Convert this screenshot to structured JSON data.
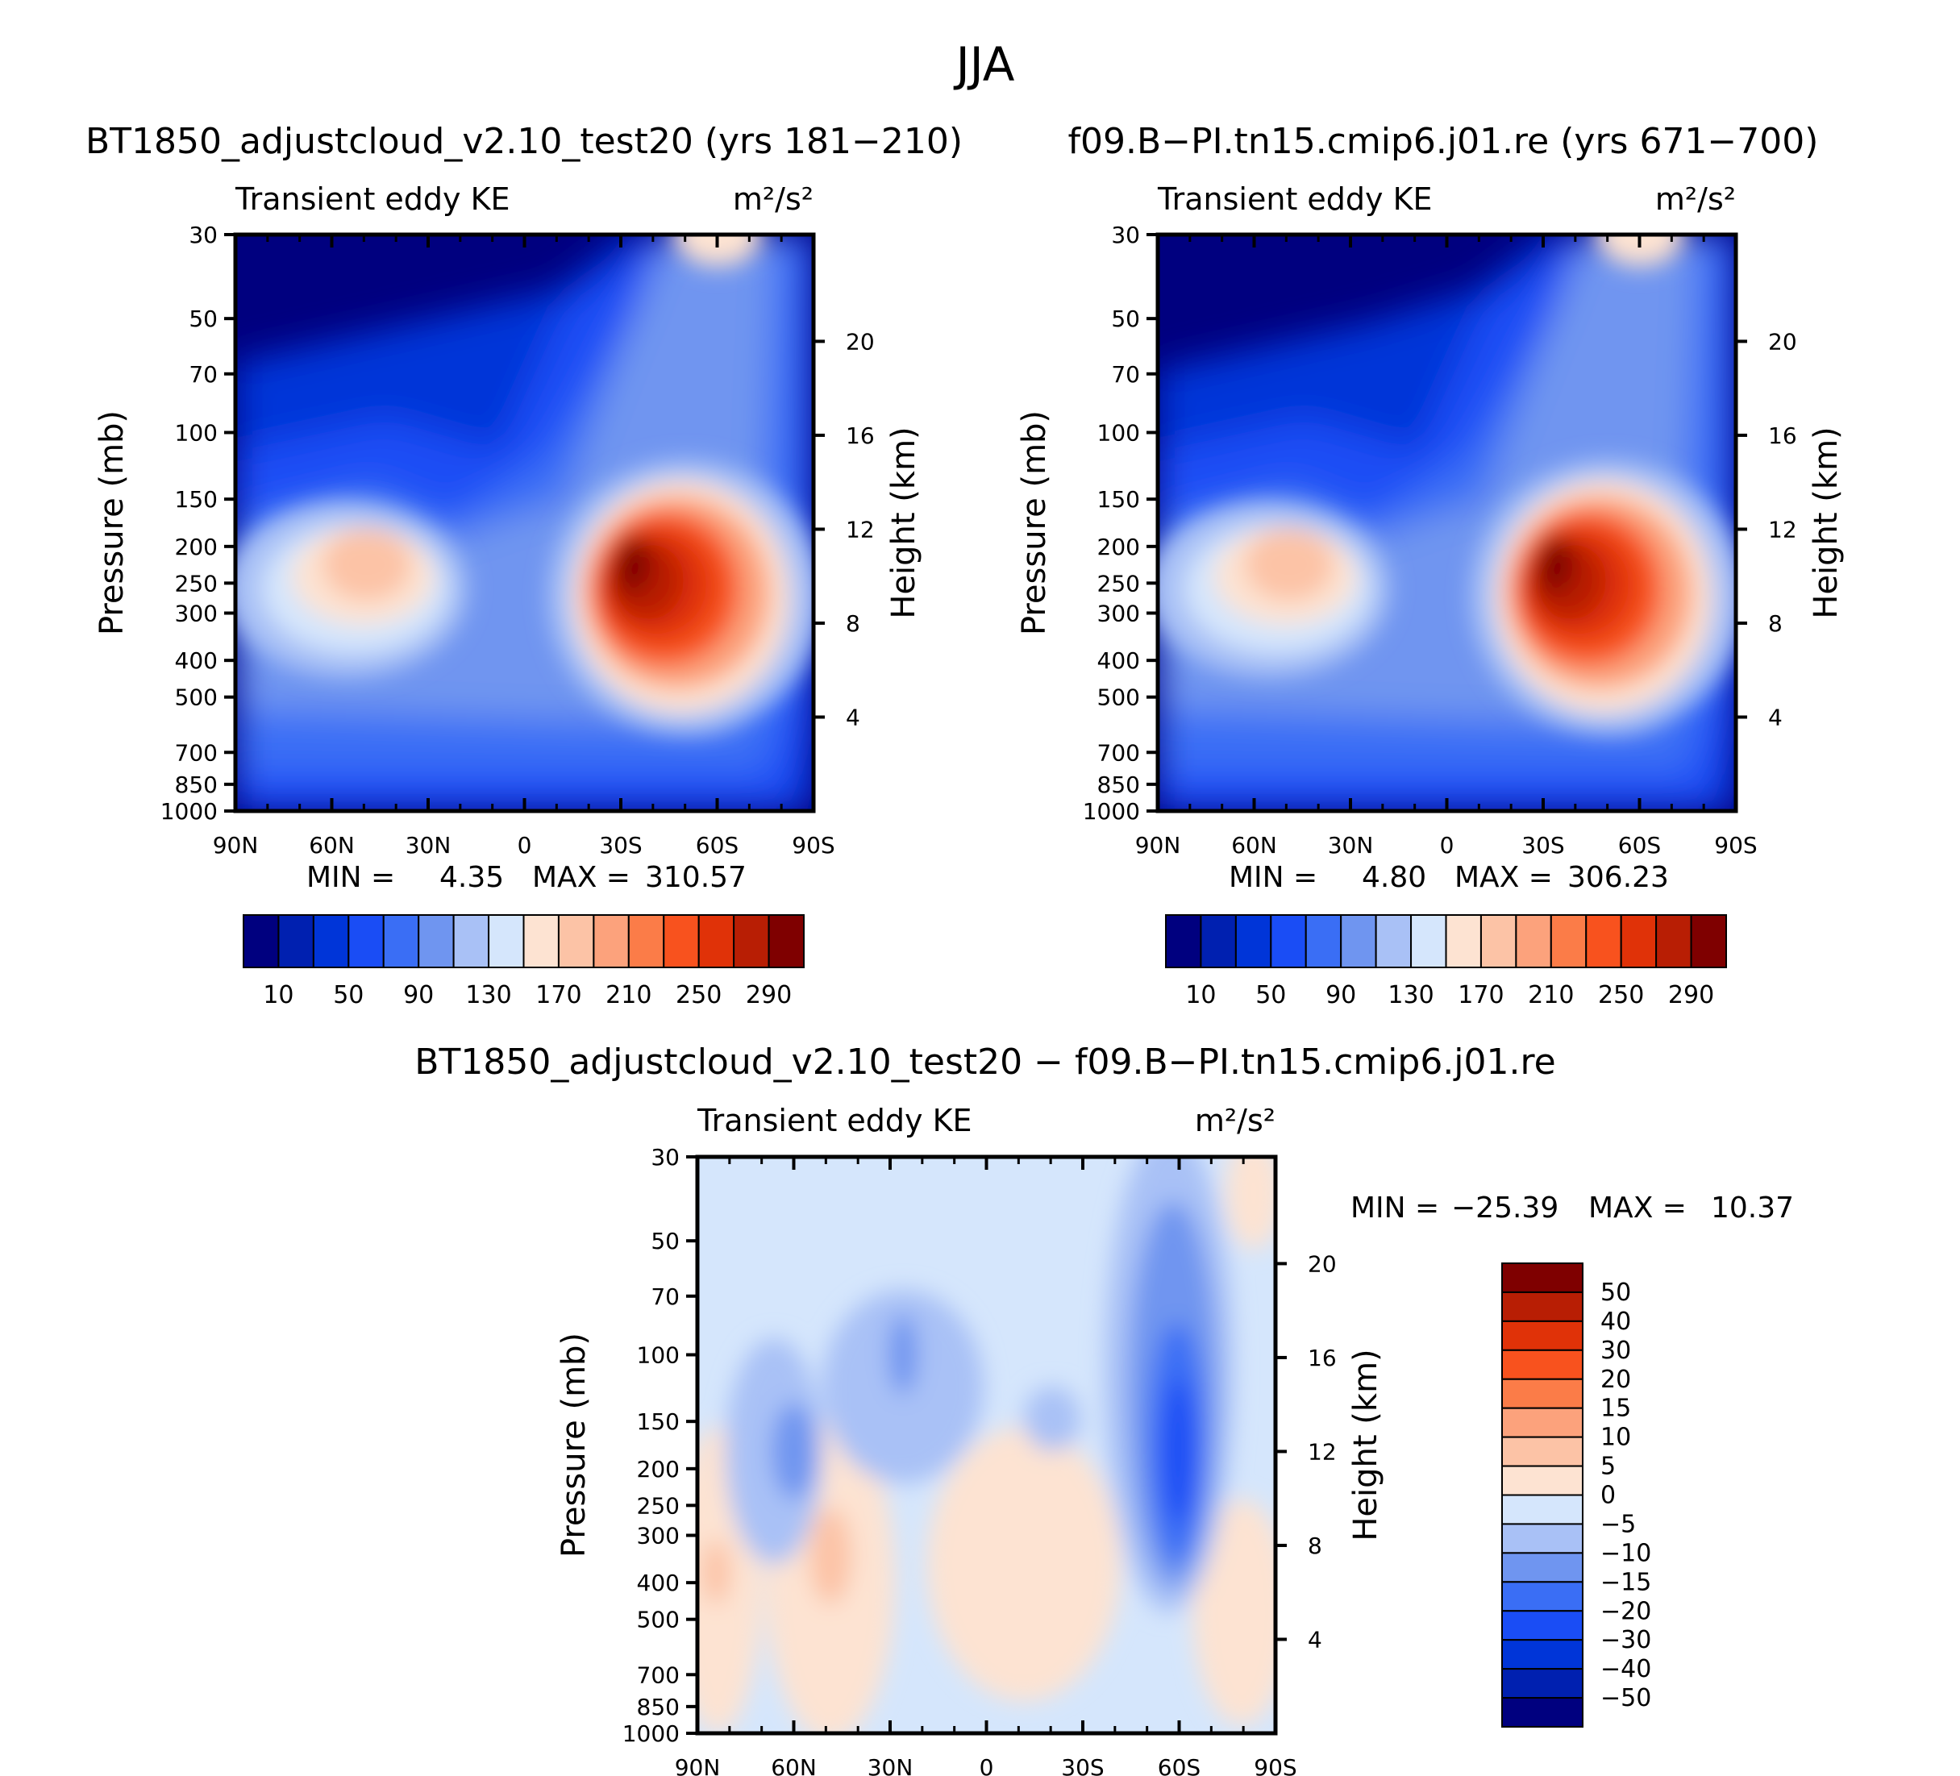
{
  "page_title": "JJA",
  "chart_data": [
    {
      "type": "heatmap",
      "panel": "top-left",
      "title": "BT1850_adjustcloud_v2.10_test20 (yrs 181−210)",
      "variable_label": "Transient eddy KE",
      "units": "m²/s²",
      "ylabel": "Pressure (mb)",
      "y2label": "Height (km)",
      "xticks": [
        "90N",
        "60N",
        "30N",
        "0",
        "30S",
        "60S",
        "90S"
      ],
      "yticks": [
        "30",
        "50",
        "70",
        "100",
        "150",
        "200",
        "250",
        "300",
        "400",
        "500",
        "700",
        "850",
        "1000"
      ],
      "y2ticks": [
        "20",
        "16",
        "12",
        "8",
        "4"
      ],
      "stats": {
        "min_label": "MIN =",
        "min": "4.35",
        "max_label": "MAX =",
        "max": "310.57"
      },
      "colorbar_labels": [
        "10",
        "50",
        "90",
        "130",
        "170",
        "210",
        "250",
        "290"
      ],
      "features": [
        {
          "lat": 47,
          "p": 260,
          "value": 175
        },
        {
          "lat": -32,
          "p": 250,
          "value": 310.57
        },
        {
          "lat": -52,
          "p": 280,
          "value": 270
        },
        {
          "lat": -60,
          "p": 30,
          "value": 160
        }
      ]
    },
    {
      "type": "heatmap",
      "panel": "top-right",
      "title": "f09.B−PI.tn15.cmip6.j01.re (yrs 671−700)",
      "variable_label": "Transient eddy KE",
      "units": "m²/s²",
      "ylabel": "Pressure (mb)",
      "y2label": "Height (km)",
      "xticks": [
        "90N",
        "60N",
        "30N",
        "0",
        "30S",
        "60S",
        "90S"
      ],
      "yticks": [
        "30",
        "50",
        "70",
        "100",
        "150",
        "200",
        "250",
        "300",
        "400",
        "500",
        "700",
        "850",
        "1000"
      ],
      "y2ticks": [
        "20",
        "16",
        "12",
        "8",
        "4"
      ],
      "stats": {
        "min_label": "MIN =",
        "min": "4.80",
        "max_label": "MAX =",
        "max": "306.23"
      },
      "colorbar_labels": [
        "10",
        "50",
        "90",
        "130",
        "170",
        "210",
        "250",
        "290"
      ],
      "features": [
        {
          "lat": 48,
          "p": 260,
          "value": 180
        },
        {
          "lat": -32,
          "p": 240,
          "value": 306.23
        },
        {
          "lat": -52,
          "p": 290,
          "value": 265
        },
        {
          "lat": -62,
          "p": 30,
          "value": 160
        }
      ]
    },
    {
      "type": "heatmap",
      "panel": "bottom",
      "title": "BT1850_adjustcloud_v2.10_test20 − f09.B−PI.tn15.cmip6.j01.re",
      "variable_label": "Transient eddy KE",
      "units": "m²/s²",
      "ylabel": "Pressure (mb)",
      "y2label": "Height (km)",
      "xticks": [
        "90N",
        "60N",
        "30N",
        "0",
        "30S",
        "60S",
        "90S"
      ],
      "yticks": [
        "30",
        "50",
        "70",
        "100",
        "150",
        "200",
        "250",
        "300",
        "400",
        "500",
        "700",
        "850",
        "1000"
      ],
      "y2ticks": [
        "20",
        "16",
        "12",
        "8",
        "4"
      ],
      "stats": {
        "min_label": "MIN =",
        "min": "−25.39",
        "max_label": "MAX =",
        "max": "10.37"
      },
      "colorbar_labels": [
        "50",
        "40",
        "30",
        "20",
        "15",
        "10",
        "5",
        "0",
        "−5",
        "−10",
        "−15",
        "−20",
        "−30",
        "−40",
        "−50"
      ],
      "features": [
        {
          "lat": -60,
          "p": 200,
          "value": -25.39
        },
        {
          "lat": 60,
          "p": 200,
          "value": -20
        },
        {
          "lat": 27,
          "p": 110,
          "value": -12
        },
        {
          "lat": 48,
          "p": 350,
          "value": 7
        },
        {
          "lat": -35,
          "p": 300,
          "value": 5
        }
      ]
    }
  ],
  "palettes": {
    "ke": [
      "#00007f",
      "#0020b0",
      "#0035d8",
      "#1a4df5",
      "#3a6ef5",
      "#6f95f0",
      "#a9c1f6",
      "#d5e6fc",
      "#fde3d2",
      "#fcc3a6",
      "#fca27c",
      "#fb7c48",
      "#f8521e",
      "#e03208",
      "#b81e04",
      "#7f0000"
    ],
    "diff": [
      "#00007f",
      "#0020b0",
      "#0035d8",
      "#1a4df5",
      "#3a6ef5",
      "#6f95f0",
      "#a9c1f6",
      "#d5e6fc",
      "#fde3d2",
      "#fcc3a6",
      "#fca27c",
      "#fb7c48",
      "#f8521e",
      "#e03208",
      "#b81e04",
      "#7f0000"
    ]
  }
}
